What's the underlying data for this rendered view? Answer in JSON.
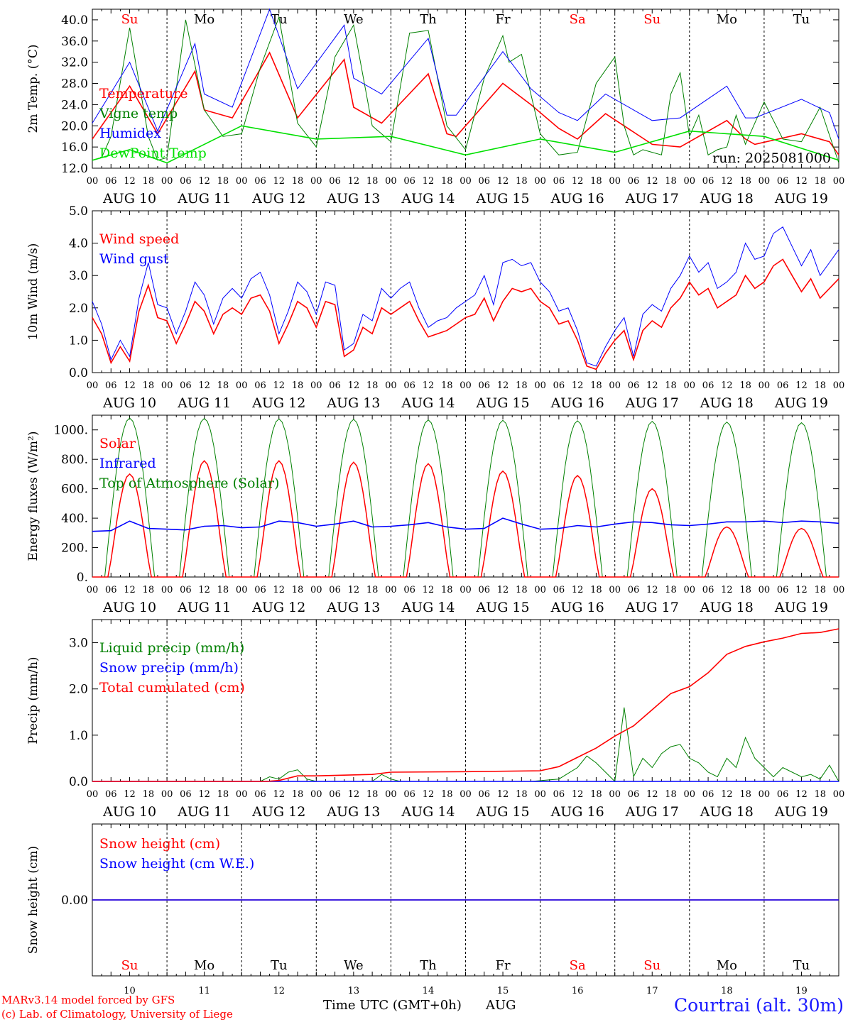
{
  "run_label": "run: 2025081000",
  "xlabel": "Time UTC (GMT+0h)",
  "month_label": "AUG",
  "footer": {
    "model": "MARv3.14 model forced by GFS",
    "lab": "(c) Lab. of Climatology, University of Liege",
    "station": "Courtrai (alt. 30m)"
  },
  "colors": {
    "red": "#ff0000",
    "green": "#008000",
    "blue": "#0000ff",
    "lightgreen": "#00e000",
    "station": "#1a1aff"
  },
  "days": [
    {
      "date": "AUG 10",
      "num": "10",
      "dow": "Su",
      "weekend": true
    },
    {
      "date": "AUG 11",
      "num": "11",
      "dow": "Mo",
      "weekend": false
    },
    {
      "date": "AUG 12",
      "num": "12",
      "dow": "Tu",
      "weekend": false
    },
    {
      "date": "AUG 13",
      "num": "13",
      "dow": "We",
      "weekend": false
    },
    {
      "date": "AUG 14",
      "num": "14",
      "dow": "Th",
      "weekend": false
    },
    {
      "date": "AUG 15",
      "num": "15",
      "dow": "Fr",
      "weekend": false
    },
    {
      "date": "AUG 16",
      "num": "16",
      "dow": "Sa",
      "weekend": true
    },
    {
      "date": "AUG 17",
      "num": "17",
      "dow": "Su",
      "weekend": true
    },
    {
      "date": "AUG 18",
      "num": "18",
      "dow": "Mo",
      "weekend": false
    },
    {
      "date": "AUG 19",
      "num": "19",
      "dow": "Tu",
      "weekend": false
    }
  ],
  "hour_ticks": [
    "00",
    "06",
    "12",
    "18"
  ],
  "chart_data": [
    {
      "type": "line",
      "ylabel": "2m Temp. (°C)",
      "ylim": [
        12,
        42
      ],
      "yticks": [
        "12.0",
        "16.0",
        "20.0",
        "24.0",
        "28.0",
        "32.0",
        "36.0",
        "40.0"
      ],
      "ytick_values": [
        12,
        16,
        20,
        24,
        28,
        32,
        36,
        40
      ],
      "legend": [
        "Temperature",
        "Vigne temp",
        "Humidex",
        "DewPoint Temp"
      ],
      "series": [
        {
          "name": "Temperature",
          "color": "red",
          "x": [
            0,
            12,
            21,
            33,
            36,
            45,
            57,
            66,
            81,
            84,
            93,
            108,
            114,
            117,
            132,
            141,
            150,
            156,
            165,
            180,
            189,
            204,
            210,
            213,
            228,
            237,
            240
          ],
          "y": [
            17.5,
            27.5,
            18.5,
            30.3,
            23,
            21.5,
            33.8,
            21.5,
            32.5,
            23.5,
            20.5,
            29.8,
            18.5,
            18,
            28,
            24,
            19.5,
            17.5,
            22.3,
            16.5,
            16,
            21,
            17.5,
            16.5,
            18.5,
            17,
            14.5
          ]
        },
        {
          "name": "Vigne temp",
          "color": "green",
          "x": [
            0,
            3,
            6,
            12,
            18,
            21,
            24,
            30,
            36,
            42,
            48,
            54,
            60,
            66,
            72,
            78,
            84,
            90,
            96,
            102,
            108,
            114,
            120,
            126,
            132,
            134,
            138,
            144,
            150,
            156,
            162,
            168,
            171,
            174,
            177,
            180,
            183,
            186,
            189,
            192,
            195,
            198,
            201,
            204,
            207,
            210,
            216,
            222,
            228,
            234,
            240
          ],
          "y": [
            13.5,
            14,
            18,
            38.5,
            18,
            13.5,
            14,
            40,
            23,
            18,
            18.5,
            31,
            40.5,
            20.5,
            16,
            33,
            39,
            20,
            17,
            37.5,
            38,
            20,
            15.5,
            29,
            37,
            32,
            33.5,
            18.5,
            14.5,
            15,
            28,
            33,
            20,
            14.5,
            15.5,
            15,
            14.5,
            26,
            30,
            18,
            22,
            14.5,
            15.5,
            16,
            22,
            16.5,
            24.5,
            17.5,
            17,
            23.5,
            13
          ]
        },
        {
          "name": "Humidex",
          "color": "blue",
          "x": [
            0,
            12,
            21,
            33,
            36,
            45,
            57,
            66,
            81,
            84,
            93,
            108,
            114,
            117,
            132,
            141,
            150,
            156,
            165,
            180,
            189,
            204,
            210,
            213,
            228,
            237,
            240
          ],
          "y": [
            20.5,
            32,
            19,
            35.5,
            26,
            23.5,
            42,
            27,
            39,
            29,
            26,
            36.5,
            22,
            22,
            34,
            27,
            22.5,
            21,
            26,
            21,
            21.5,
            27.5,
            21.5,
            21.5,
            25,
            22.5,
            17.5
          ]
        },
        {
          "name": "DewPoint Temp",
          "color": "lightgreen",
          "x": [
            0,
            12,
            24,
            48,
            72,
            96,
            120,
            144,
            168,
            192,
            216,
            240
          ],
          "y": [
            13.5,
            15.5,
            13,
            20,
            17.5,
            18,
            14.5,
            17.5,
            15,
            19,
            18,
            13.5
          ]
        }
      ]
    },
    {
      "type": "line",
      "ylabel": "10m Wind (m/s)",
      "ylim": [
        0,
        5
      ],
      "yticks": [
        "0.0",
        "1.0",
        "2.0",
        "3.0",
        "4.0",
        "5.0"
      ],
      "ytick_values": [
        0,
        1,
        2,
        3,
        4,
        5
      ],
      "legend": [
        "Wind speed",
        "Wind gust"
      ],
      "series": [
        {
          "name": "Wind speed",
          "color": "red",
          "x": [
            0,
            3,
            6,
            9,
            12,
            15,
            18,
            21,
            24,
            27,
            30,
            33,
            36,
            39,
            42,
            45,
            48,
            51,
            54,
            57,
            60,
            63,
            66,
            69,
            72,
            75,
            78,
            81,
            84,
            87,
            90,
            93,
            96,
            99,
            102,
            105,
            108,
            111,
            114,
            117,
            120,
            123,
            126,
            129,
            132,
            135,
            138,
            141,
            144,
            147,
            150,
            153,
            156,
            159,
            162,
            165,
            168,
            171,
            174,
            177,
            180,
            183,
            186,
            189,
            192,
            195,
            198,
            201,
            204,
            207,
            210,
            213,
            216,
            219,
            222,
            225,
            228,
            231,
            234,
            237,
            240
          ],
          "y": [
            1.7,
            1.2,
            0.3,
            0.8,
            0.35,
            1.9,
            2.7,
            1.7,
            1.6,
            0.9,
            1.5,
            2.2,
            1.9,
            1.2,
            1.8,
            2.0,
            1.8,
            2.3,
            2.4,
            1.9,
            0.9,
            1.5,
            2.2,
            2.0,
            1.4,
            2.2,
            2.1,
            0.5,
            0.7,
            1.4,
            1.2,
            2.0,
            1.8,
            2.0,
            2.2,
            1.6,
            1.1,
            1.2,
            1.3,
            1.5,
            1.7,
            1.8,
            2.3,
            1.6,
            2.2,
            2.6,
            2.5,
            2.6,
            2.2,
            2.0,
            1.5,
            1.6,
            1.0,
            0.2,
            0.1,
            0.6,
            1.0,
            1.3,
            0.4,
            1.3,
            1.6,
            1.4,
            2.0,
            2.3,
            2.8,
            2.4,
            2.6,
            2.0,
            2.2,
            2.4,
            3.0,
            2.6,
            2.8,
            3.3,
            3.5,
            3.0,
            2.5,
            2.9,
            2.3,
            2.6,
            2.9
          ]
        },
        {
          "name": "Wind gust",
          "color": "blue",
          "x": [
            0,
            3,
            6,
            9,
            12,
            15,
            18,
            21,
            24,
            27,
            30,
            33,
            36,
            39,
            42,
            45,
            48,
            51,
            54,
            57,
            60,
            63,
            66,
            69,
            72,
            75,
            78,
            81,
            84,
            87,
            90,
            93,
            96,
            99,
            102,
            105,
            108,
            111,
            114,
            117,
            120,
            123,
            126,
            129,
            132,
            135,
            138,
            141,
            144,
            147,
            150,
            153,
            156,
            159,
            162,
            165,
            168,
            171,
            174,
            177,
            180,
            183,
            186,
            189,
            192,
            195,
            198,
            201,
            204,
            207,
            210,
            213,
            216,
            219,
            222,
            225,
            228,
            231,
            234,
            237,
            240
          ],
          "y": [
            2.2,
            1.5,
            0.4,
            1.0,
            0.5,
            2.3,
            3.4,
            2.1,
            2.0,
            1.2,
            1.9,
            2.8,
            2.4,
            1.5,
            2.3,
            2.6,
            2.3,
            2.9,
            3.1,
            2.4,
            1.2,
            1.9,
            2.8,
            2.5,
            1.8,
            2.8,
            2.7,
            0.7,
            0.9,
            1.8,
            1.6,
            2.6,
            2.3,
            2.6,
            2.8,
            2.0,
            1.4,
            1.6,
            1.7,
            2.0,
            2.2,
            2.4,
            3.0,
            2.1,
            3.4,
            3.5,
            3.3,
            3.4,
            2.8,
            2.5,
            1.9,
            2.0,
            1.3,
            0.3,
            0.2,
            0.8,
            1.3,
            1.7,
            0.5,
            1.8,
            2.1,
            1.9,
            2.6,
            3.0,
            3.6,
            3.1,
            3.4,
            2.6,
            2.8,
            3.1,
            4.0,
            3.5,
            3.6,
            4.3,
            4.5,
            3.9,
            3.3,
            3.8,
            3.0,
            3.4,
            3.8
          ]
        }
      ]
    },
    {
      "type": "line",
      "ylabel": "Energy fluxes (W/m²)",
      "ylim": [
        0,
        1100
      ],
      "yticks": [
        "0.",
        "200.",
        "400.",
        "600.",
        "800.",
        "1000."
      ],
      "ytick_values": [
        0,
        200,
        400,
        600,
        800,
        1000
      ],
      "legend": [
        "Solar",
        "Infrared",
        "Top of Atmosphere (Solar)"
      ],
      "daily_peaks": {
        "toa": [
          1080,
          1078,
          1075,
          1072,
          1068,
          1065,
          1062,
          1058,
          1053,
          1049
        ],
        "solar": [
          700,
          790,
          790,
          780,
          770,
          720,
          690,
          600,
          340,
          330
        ]
      },
      "series": [
        {
          "name": "Infrared",
          "color": "blue",
          "x": [
            0,
            6,
            12,
            18,
            24,
            30,
            36,
            42,
            48,
            54,
            60,
            66,
            72,
            78,
            84,
            90,
            96,
            102,
            108,
            114,
            120,
            126,
            132,
            138,
            144,
            150,
            156,
            162,
            168,
            174,
            180,
            186,
            192,
            198,
            204,
            210,
            216,
            222,
            228,
            234,
            240
          ],
          "y": [
            310,
            315,
            380,
            330,
            325,
            320,
            345,
            350,
            335,
            340,
            380,
            370,
            345,
            360,
            380,
            340,
            345,
            355,
            370,
            340,
            325,
            330,
            400,
            360,
            325,
            330,
            350,
            340,
            360,
            375,
            370,
            355,
            350,
            360,
            375,
            375,
            380,
            370,
            380,
            375,
            365
          ]
        }
      ]
    },
    {
      "type": "line",
      "ylabel": "Precip (mm/h)",
      "ylim": [
        0,
        3.5
      ],
      "yticks": [
        "0.0",
        "1.0",
        "2.0",
        "3.0"
      ],
      "ytick_values": [
        0,
        1,
        2,
        3
      ],
      "legend": [
        "Liquid precip (mm/h)",
        "Snow precip (mm/h)",
        "Total cumulated (cm)"
      ],
      "series": [
        {
          "name": "Liquid precip (mm/h)",
          "color": "green",
          "x": [
            0,
            54,
            57,
            60,
            63,
            66,
            69,
            72,
            90,
            93,
            96,
            99,
            120,
            141,
            150,
            156,
            159,
            162,
            165,
            168,
            171,
            174,
            177,
            180,
            183,
            186,
            189,
            192,
            195,
            198,
            201,
            204,
            207,
            210,
            213,
            216,
            219,
            222,
            225,
            228,
            231,
            234,
            237,
            240
          ],
          "y": [
            0,
            0,
            0.1,
            0.05,
            0.2,
            0.25,
            0.05,
            0,
            0,
            0.15,
            0.05,
            0,
            0,
            0,
            0.05,
            0.3,
            0.55,
            0.4,
            0.2,
            0,
            1.6,
            0.1,
            0.5,
            0.3,
            0.6,
            0.75,
            0.8,
            0.5,
            0.4,
            0.2,
            0.1,
            0.5,
            0.3,
            0.95,
            0.5,
            0.3,
            0.1,
            0.3,
            0.2,
            0.1,
            0.15,
            0.05,
            0.35,
            0
          ]
        },
        {
          "name": "Snow precip (mm/h)",
          "color": "blue",
          "x": [
            0,
            240
          ],
          "y": [
            0,
            0
          ]
        },
        {
          "name": "Total cumulated (cm)",
          "color": "red",
          "x": [
            0,
            56,
            60,
            66,
            72,
            90,
            96,
            120,
            144,
            150,
            156,
            162,
            168,
            174,
            180,
            186,
            192,
            198,
            204,
            210,
            216,
            222,
            228,
            234,
            240
          ],
          "y": [
            0,
            0,
            0.02,
            0.12,
            0.12,
            0.15,
            0.2,
            0.21,
            0.23,
            0.32,
            0.52,
            0.72,
            0.98,
            1.2,
            1.55,
            1.9,
            2.05,
            2.35,
            2.75,
            2.92,
            3.02,
            3.1,
            3.2,
            3.22,
            3.3
          ]
        }
      ]
    },
    {
      "type": "line",
      "ylabel": "Snow height (cm)",
      "ylim": [
        -1,
        1
      ],
      "yticks": [
        "0.00"
      ],
      "ytick_values": [
        0
      ],
      "legend": [
        "Snow height (cm)",
        "Snow height (cm W.E.)"
      ],
      "series": [
        {
          "name": "Snow height (cm)",
          "color": "red",
          "x": [
            0,
            240
          ],
          "y": [
            0,
            0
          ]
        },
        {
          "name": "Snow height (cm W.E.)",
          "color": "blue",
          "x": [
            0,
            240
          ],
          "y": [
            0,
            0
          ]
        }
      ]
    }
  ]
}
